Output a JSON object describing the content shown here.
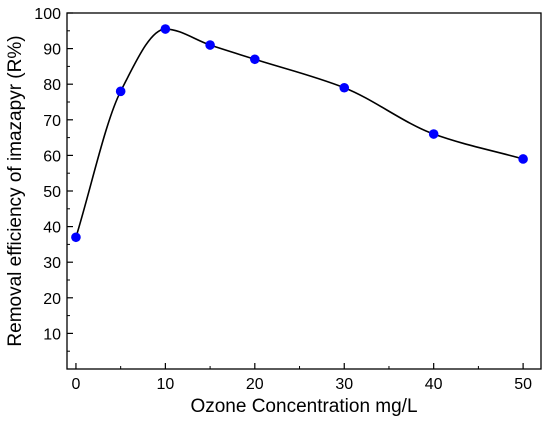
{
  "chart_data": {
    "type": "scatter",
    "xlabel": "Ozone Concentration mg/L",
    "ylabel": "Removal efficiency of imazapyr (R%)",
    "xlim": [
      -1,
      52
    ],
    "ylim": [
      0,
      100
    ],
    "x_ticks": [
      0,
      10,
      20,
      30,
      40,
      50
    ],
    "y_ticks": [
      10,
      20,
      30,
      40,
      50,
      60,
      70,
      80,
      90,
      100
    ],
    "grid": false,
    "legend": "none",
    "smooth_line": true,
    "series": [
      {
        "x": [
          0,
          5,
          10,
          15,
          20,
          30,
          40,
          50
        ],
        "values": [
          37,
          78,
          95.5,
          91,
          87,
          79,
          66,
          59
        ],
        "marker_color": "#0000ff",
        "line_color": "#000000"
      }
    ]
  }
}
